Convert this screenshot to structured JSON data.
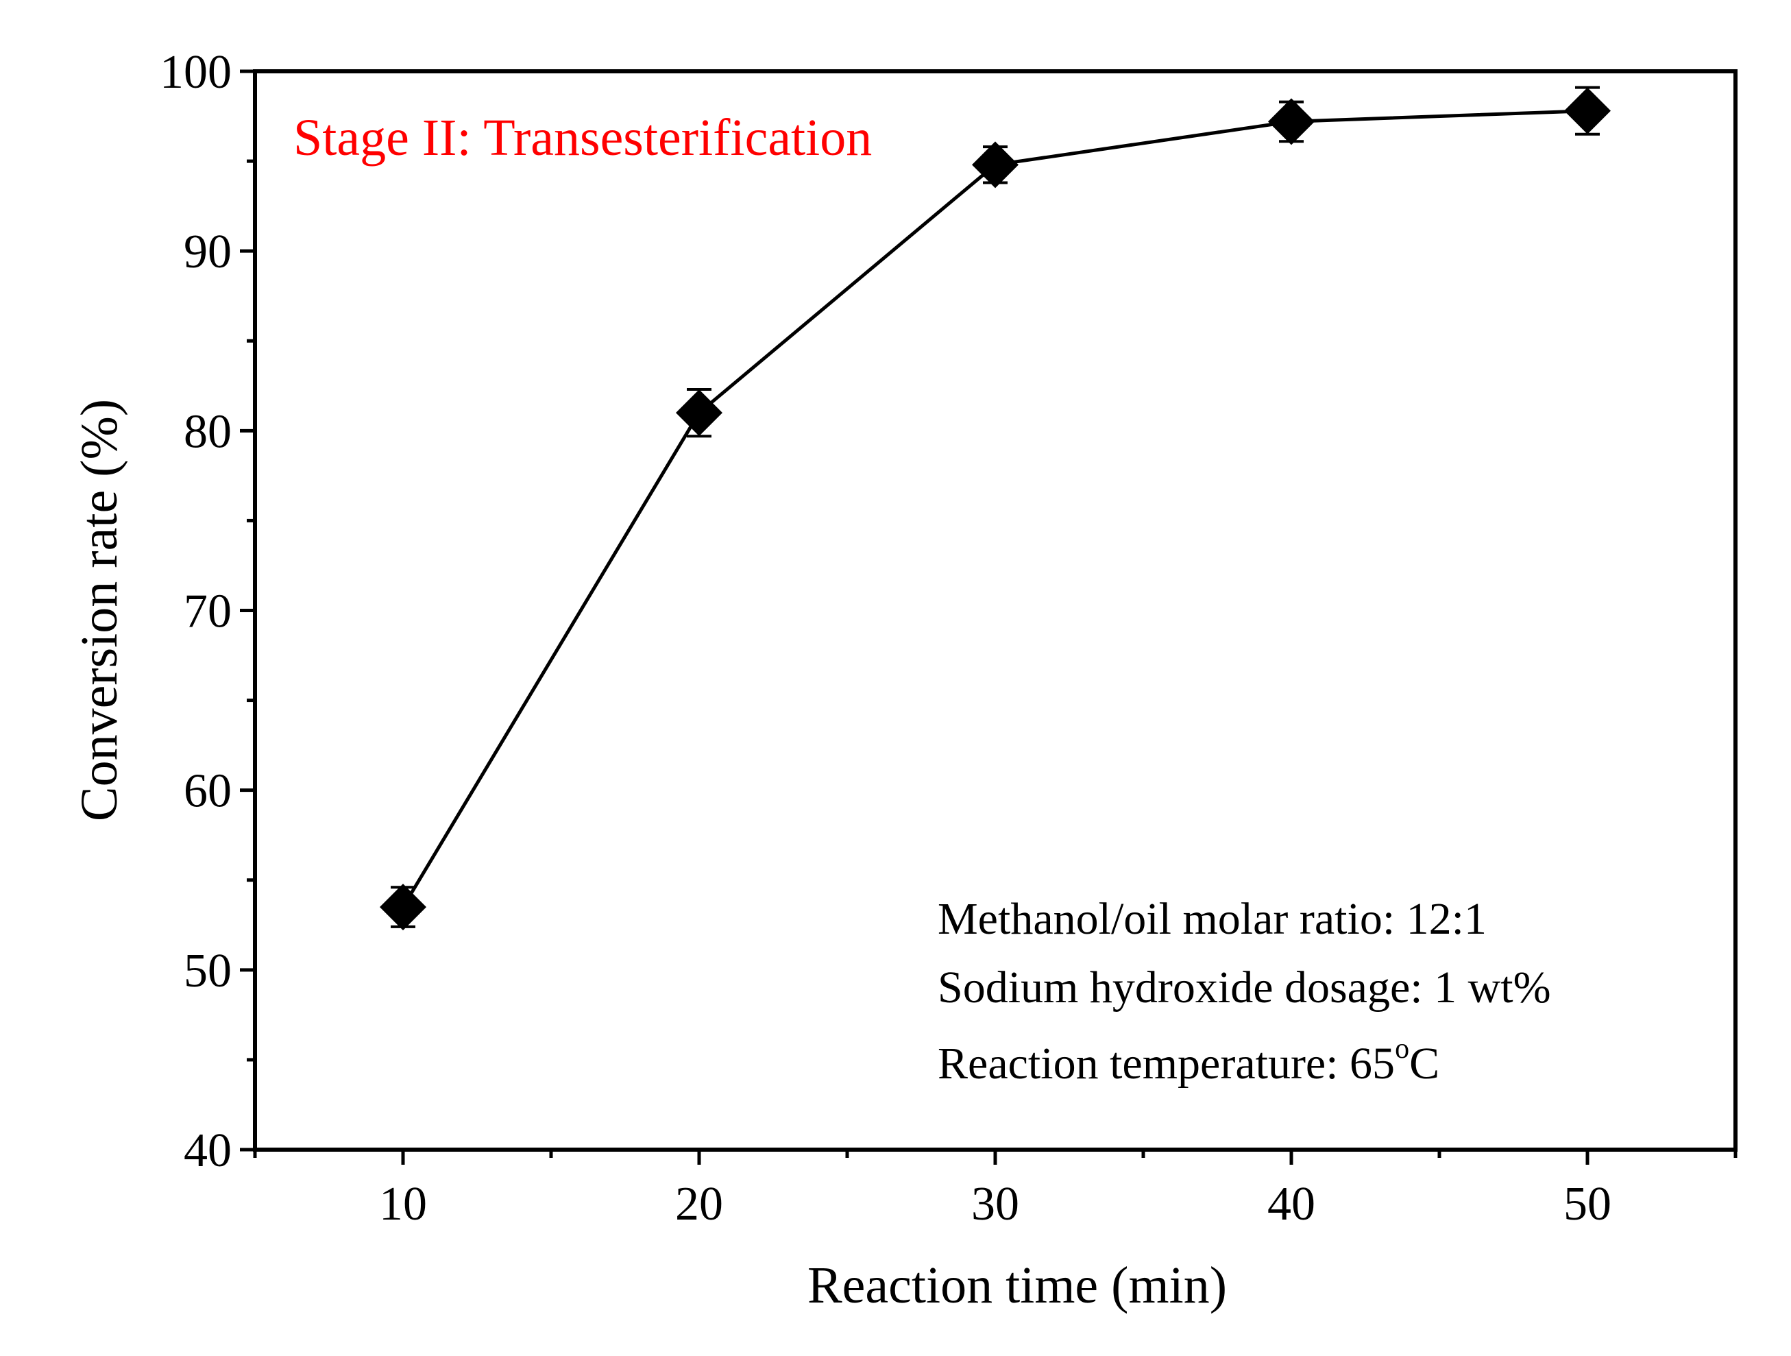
{
  "chart_data": {
    "type": "line",
    "title": "Stage II: Transesterification",
    "xlabel": "Reaction time (min)",
    "ylabel": "Conversion rate (%)",
    "xlim": [
      5,
      55
    ],
    "ylim": [
      40,
      100
    ],
    "xticks": [
      10,
      20,
      30,
      40,
      50
    ],
    "yticks": [
      40,
      50,
      60,
      70,
      80,
      90,
      100
    ],
    "series": [
      {
        "name": "Conversion rate",
        "marker": "diamond",
        "color": "#000000",
        "x": [
          10,
          20,
          30,
          40,
          50
        ],
        "y": [
          53.5,
          81.0,
          94.8,
          97.2,
          97.8
        ],
        "error": [
          1.1,
          1.3,
          1.0,
          1.1,
          1.3
        ]
      }
    ],
    "annotations": [
      "Methanol/oil molar ratio: 12:1",
      "Sodium hydroxide dosage: 1 wt%",
      "Reaction temperature: 65"
    ],
    "annotation_superscript": "o",
    "annotation_unit": "C",
    "title_color": "#ff0000",
    "grid": false
  }
}
